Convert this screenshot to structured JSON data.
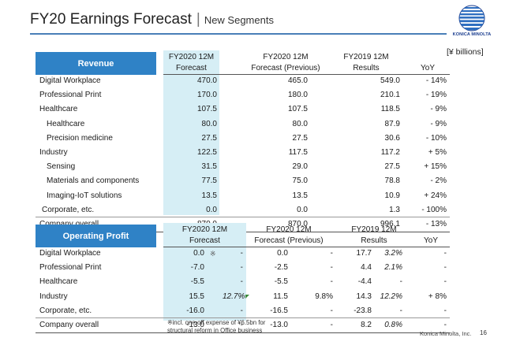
{
  "title": "FY20 Earnings Forecast",
  "subtitle": "New Segments",
  "logo": {
    "text": "KONICA MINOLTA",
    "colors": {
      "primary": "#1a3d8f",
      "stripes": "#2f6fc0"
    }
  },
  "units": "[¥ billions]",
  "accent_color": "#2f82c6",
  "highlight_color": "#d6eef5",
  "revenue": {
    "header": "Revenue",
    "col_fc_line1": "FY2020 12M",
    "col_fc_line2": "Forecast",
    "col_prev_line1": "FY2020 12M",
    "col_prev_line2": "Forecast (Previous)",
    "col_res_line1": "FY2019 12M",
    "col_res_line2": "Results",
    "col_yoy": "YoY",
    "rows": [
      {
        "label": "Digital Workplace",
        "fc": "470.0",
        "prev": "465.0",
        "res": "549.0",
        "yoy": "- 14%"
      },
      {
        "label": "Professional Print",
        "fc": "170.0",
        "prev": "180.0",
        "res": "210.1",
        "yoy": "- 19%"
      },
      {
        "label": "Healthcare",
        "fc": "107.5",
        "prev": "107.5",
        "res": "118.5",
        "yoy": "- 9%"
      },
      {
        "label": "Healthcare",
        "fc": "80.0",
        "prev": "80.0",
        "res": "87.9",
        "yoy": "- 9%"
      },
      {
        "label": "Precision medicine",
        "fc": "27.5",
        "prev": "27.5",
        "res": "30.6",
        "yoy": "- 10%"
      },
      {
        "label": "Industry",
        "fc": "122.5",
        "prev": "117.5",
        "res": "117.2",
        "yoy": "+ 5%"
      },
      {
        "label": "Sensing",
        "fc": "31.5",
        "prev": "29.0",
        "res": "27.5",
        "yoy": "+ 15%"
      },
      {
        "label": "Materials and components",
        "fc": "77.5",
        "prev": "75.0",
        "res": "78.8",
        "yoy": "- 2%"
      },
      {
        "label": "Imaging-IoT solutions",
        "fc": "13.5",
        "prev": "13.5",
        "res": "10.9",
        "yoy": "+ 24%"
      },
      {
        "label": "Corporate, etc.",
        "fc": "0.0",
        "prev": "0.0",
        "res": "1.3",
        "yoy": "- 100%"
      },
      {
        "label": "Company overall",
        "fc": "870.0",
        "prev": "870.0",
        "res": "996.1",
        "yoy": "- 13%"
      }
    ]
  },
  "op_profit": {
    "header": "Operating Profit",
    "col_fc_line1": "FY2020 12M",
    "col_fc_line2": "Forecast",
    "col_prev_line1": "FY2020 12M",
    "col_prev_line2": "Forecast (Previous)",
    "col_res_line1": "FY2019 12M",
    "col_res_line2": "Results",
    "col_yoy": "YoY",
    "rows": [
      {
        "label": "Digital Workplace",
        "fc": "0.0",
        "fc_note": "※",
        "fc_pct": "-",
        "prev": "0.0",
        "prev_pct": "-",
        "res": "17.7",
        "res_pct": "3.2%",
        "yoy": "-"
      },
      {
        "label": "Professional Print",
        "fc": "-7.0",
        "fc_note": "",
        "fc_pct": "-",
        "prev": "-2.5",
        "prev_pct": "-",
        "res": "4.4",
        "res_pct": "2.1%",
        "yoy": "-"
      },
      {
        "label": "Healthcare",
        "fc": "-5.5",
        "fc_note": "",
        "fc_pct": "-",
        "prev": "-5.5",
        "prev_pct": "-",
        "res": "-4.4",
        "res_pct": "-",
        "yoy": "-"
      },
      {
        "label": "Industry",
        "fc": "15.5",
        "fc_note": "",
        "fc_pct": "12.7%",
        "prev": "11.5",
        "prev_pct": "9.8%",
        "res": "14.3",
        "res_pct": "12.2%",
        "yoy": "+ 8%"
      },
      {
        "label": "Corporate, etc.",
        "fc": "-16.0",
        "fc_note": "",
        "fc_pct": "-",
        "prev": "-16.5",
        "prev_pct": "-",
        "res": "-23.8",
        "res_pct": "-",
        "yoy": "-"
      },
      {
        "label": "Company overall",
        "fc": "-13.0",
        "fc_note": "",
        "fc_pct": "-",
        "prev": "-13.0",
        "prev_pct": "-",
        "res": "8.2",
        "res_pct": "0.8%",
        "yoy": "-"
      }
    ]
  },
  "footnote_line1": "※incl. one-off expense of ¥6.5bn for",
  "footnote_line2": "structural reform in Office business",
  "footer": "Konica Minolta, Inc.",
  "page_number": "16"
}
